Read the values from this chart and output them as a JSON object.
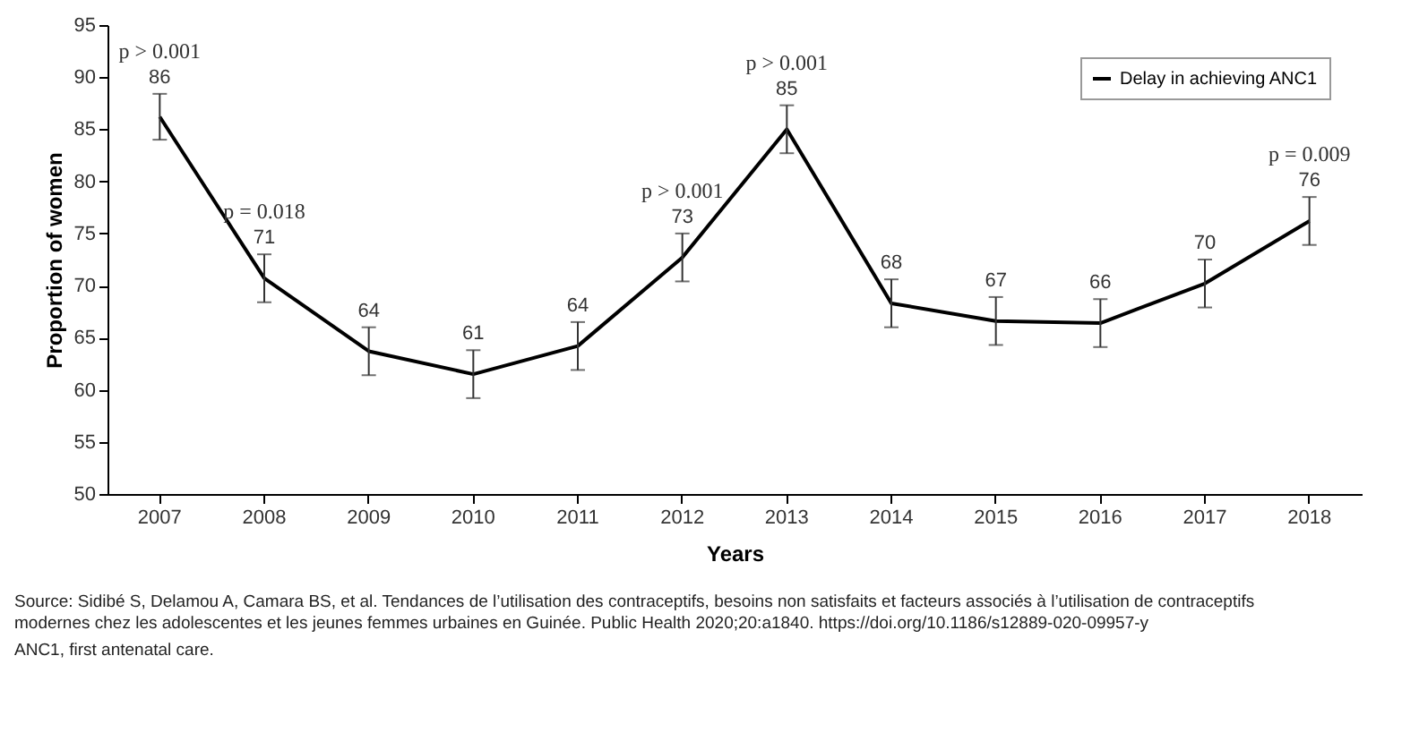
{
  "chart_data": {
    "type": "line",
    "xlabel": "Years",
    "ylabel": "Proportion of women",
    "categories": [
      "2007",
      "2008",
      "2009",
      "2010",
      "2011",
      "2012",
      "2013",
      "2014",
      "2015",
      "2016",
      "2017",
      "2018"
    ],
    "series": [
      {
        "name": "Delay in achieving ANC1",
        "color": "#000000",
        "values": [
          86.2,
          70.7,
          63.7,
          61.5,
          64.2,
          72.7,
          85.0,
          68.3,
          66.6,
          66.4,
          70.2,
          76.2
        ],
        "errors": [
          2.2,
          2.3,
          2.3,
          2.3,
          2.3,
          2.3,
          2.3,
          2.3,
          2.3,
          2.3,
          2.3,
          2.3
        ],
        "value_labels": [
          "86",
          "71",
          "64",
          "61",
          "64",
          "73",
          "85",
          "68",
          "67",
          "66",
          "70",
          "76"
        ]
      }
    ],
    "ylim": [
      50,
      95
    ],
    "yticks": [
      50,
      55,
      60,
      65,
      70,
      75,
      80,
      85,
      90,
      95
    ],
    "grid": false,
    "legend": "top right",
    "marker": "none",
    "line_style": "solid",
    "annotations": [
      {
        "text": "p > 0.001",
        "x": "2007",
        "y": 86.2
      },
      {
        "text": "p = 0.018",
        "x": "2008",
        "y": 70.7
      },
      {
        "text": "p > 0.001",
        "x": "2012",
        "y": 72.7
      },
      {
        "text": "p > 0.001",
        "x": "2013",
        "y": 85.0
      },
      {
        "text": "p = 0.009",
        "x": "2018",
        "y": 76.2
      },
      "Source: Sidibé S, Delamou A, Camara BS, et al. Tendances de l’utilisation des contraceptifs, besoins non satisfaits et facteurs associés à l’utilisation de contraceptifs modernes chez les adolescentes et les jeunes femmes urbaines en Guinée. Public Health 2020;20:a1840. https://doi.org/10.1186/s12889-020-09957-y",
      "ANC1, first antenatal care."
    ]
  }
}
